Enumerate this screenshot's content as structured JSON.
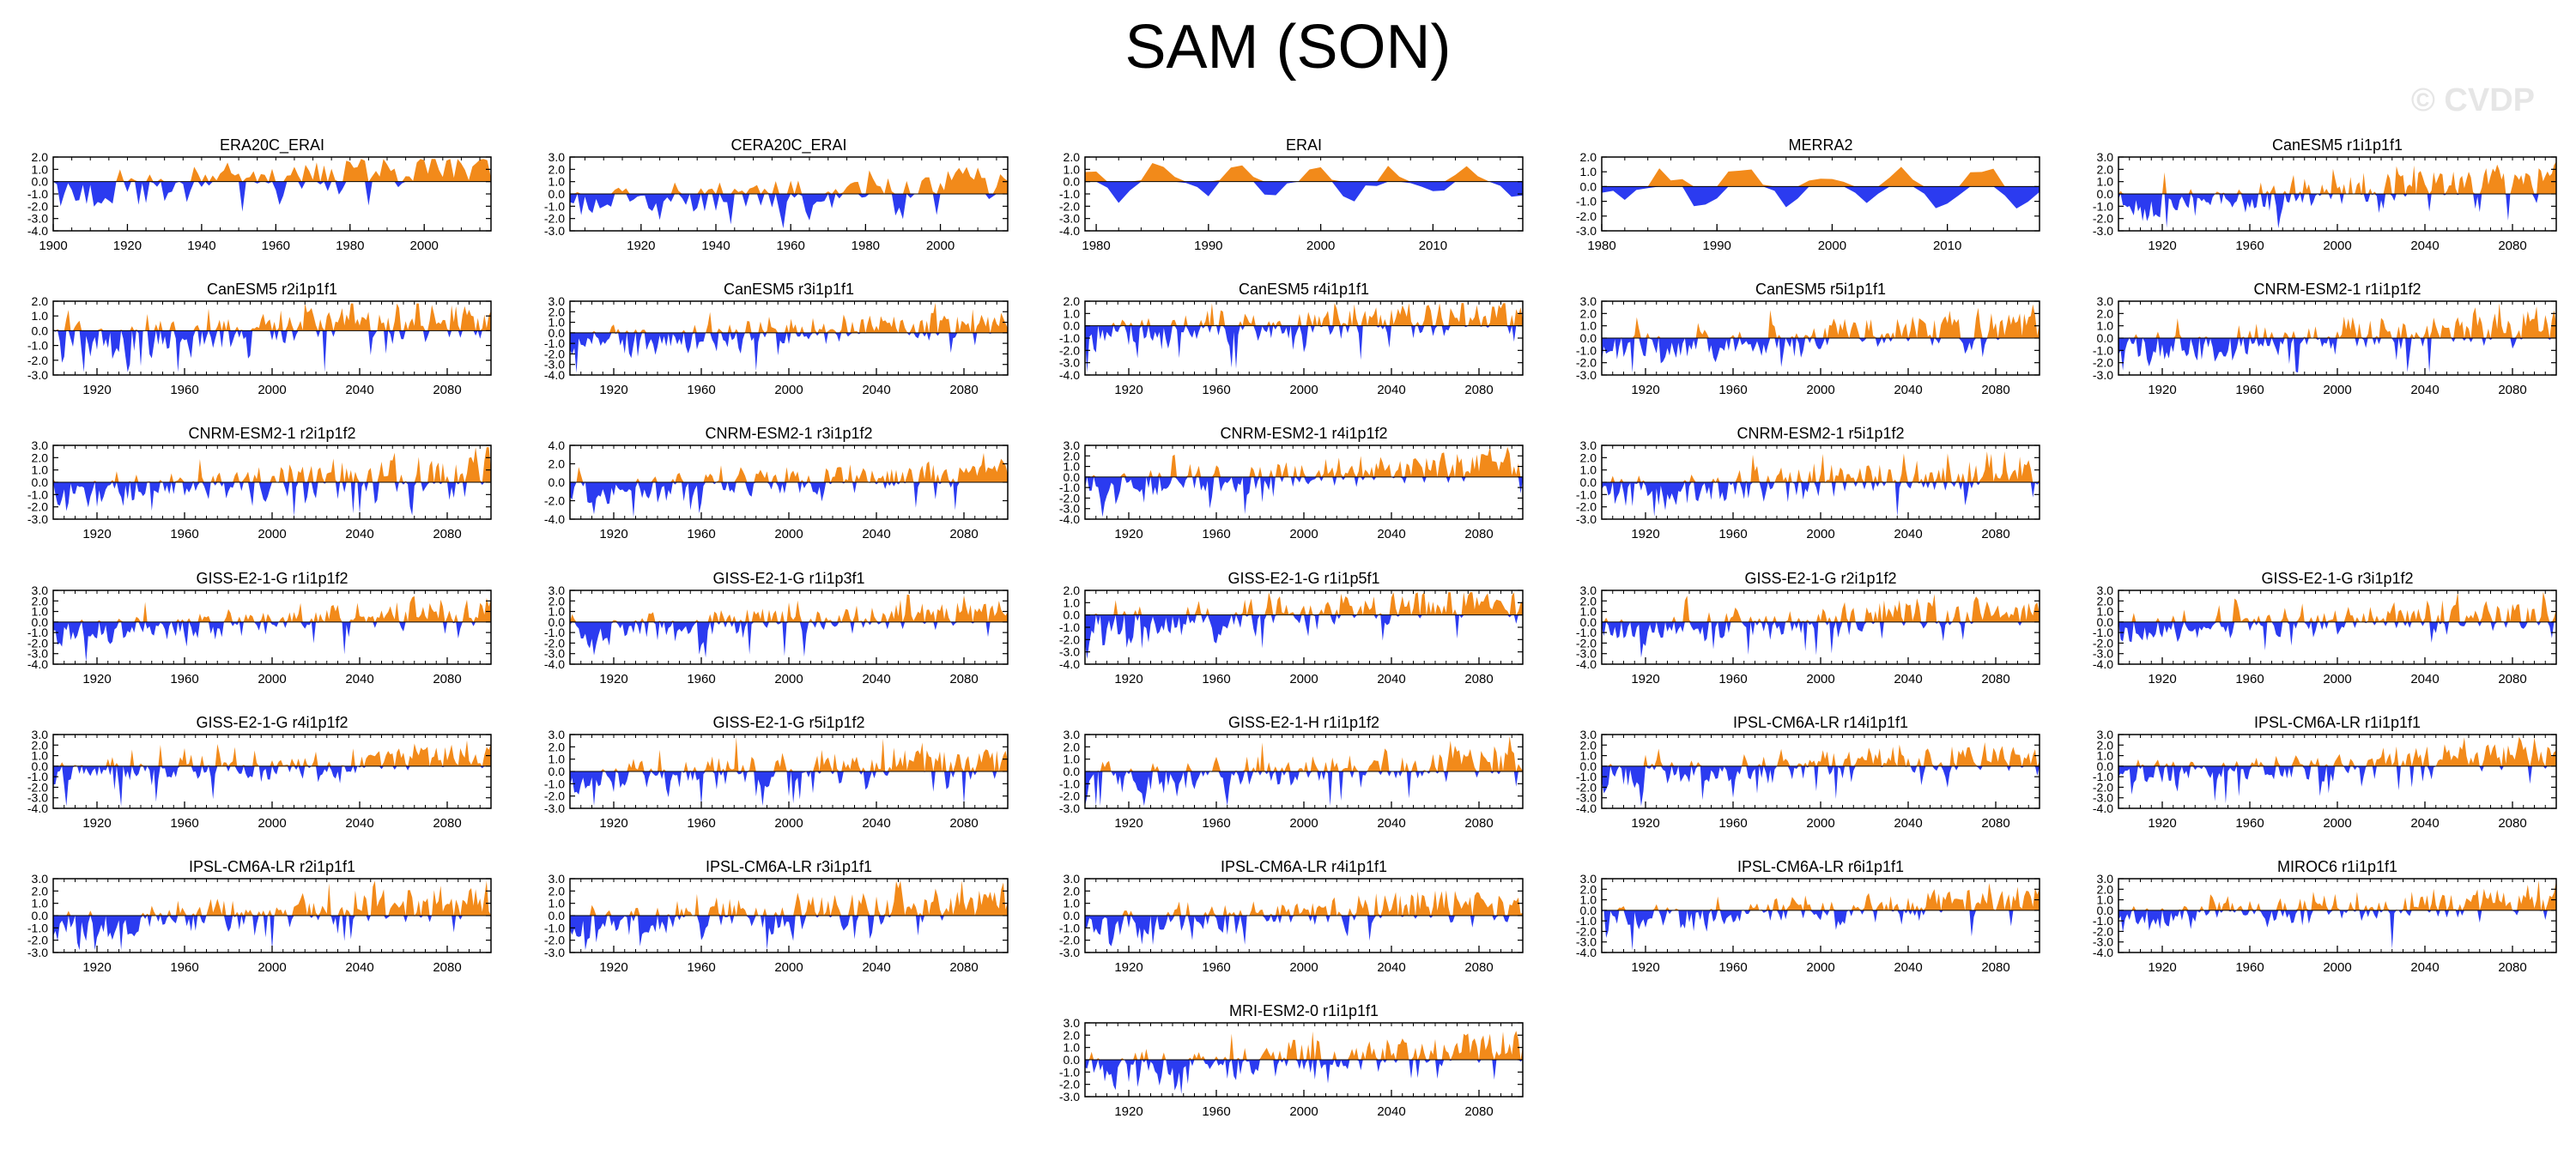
{
  "figure": {
    "title": "SAM (SON)",
    "watermark": "© CVDP"
  },
  "colors": {
    "positive": "#f28a1a",
    "negative": "#2b3bf0",
    "axis": "#000000"
  },
  "chart_data": [
    {
      "type": "area",
      "title": "ERA20C_ERAI",
      "x_range": [
        1900,
        2018
      ],
      "ylim": [
        -4,
        2
      ],
      "yticks": [
        "2.0",
        "1.0",
        "0.0",
        "-1.0",
        "-2.0",
        "-3.0",
        "-4.0"
      ],
      "xticks": [
        1900,
        1920,
        1940,
        1960,
        1980,
        2000
      ],
      "values_note": "yearly SON SAM index values"
    },
    {
      "type": "area",
      "title": "CERA20C_ERAI",
      "x_range": [
        1901,
        2018
      ],
      "ylim": [
        -3,
        3
      ],
      "yticks": [
        "3.0",
        "2.0",
        "1.0",
        "0.0",
        "-1.0",
        "-2.0",
        "-3.0"
      ],
      "xticks": [
        1920,
        1940,
        1960,
        1980,
        2000
      ]
    },
    {
      "type": "area",
      "title": "ERAI",
      "x_range": [
        1979,
        2018
      ],
      "ylim": [
        -4,
        2
      ],
      "yticks": [
        "2.0",
        "1.0",
        "0.0",
        "-1.0",
        "-2.0",
        "-3.0",
        "-4.0"
      ],
      "xticks": [
        1980,
        1990,
        2000,
        2010
      ]
    },
    {
      "type": "area",
      "title": "MERRA2",
      "x_range": [
        1980,
        2018
      ],
      "ylim": [
        -3,
        2
      ],
      "yticks": [
        "2.0",
        "1.0",
        "0.0",
        "-1.0",
        "-2.0",
        "-3.0"
      ],
      "xticks": [
        1980,
        1990,
        2000,
        2010
      ]
    },
    {
      "type": "area",
      "title": "CanESM5 r1i1p1f1",
      "x_range": [
        1900,
        2100
      ],
      "ylim": [
        -3,
        3
      ],
      "yticks": [
        "3.0",
        "2.0",
        "1.0",
        "0.0",
        "-1.0",
        "-2.0",
        "-3.0"
      ],
      "xticks": [
        1920,
        1960,
        2000,
        2040,
        2080
      ]
    },
    {
      "type": "area",
      "title": "CanESM5 r2i1p1f1",
      "x_range": [
        1900,
        2100
      ],
      "ylim": [
        -3,
        2
      ],
      "yticks": [
        "2.0",
        "1.0",
        "0.0",
        "-1.0",
        "-2.0",
        "-3.0"
      ],
      "xticks": [
        1920,
        1960,
        2000,
        2040,
        2080
      ]
    },
    {
      "type": "area",
      "title": "CanESM5 r3i1p1f1",
      "x_range": [
        1900,
        2100
      ],
      "ylim": [
        -4,
        3
      ],
      "yticks": [
        "3.0",
        "2.0",
        "1.0",
        "0.0",
        "-1.0",
        "-2.0",
        "-3.0",
        "-4.0"
      ],
      "xticks": [
        1920,
        1960,
        2000,
        2040,
        2080
      ]
    },
    {
      "type": "area",
      "title": "CanESM5 r4i1p1f1",
      "x_range": [
        1900,
        2100
      ],
      "ylim": [
        -4,
        2
      ],
      "yticks": [
        "2.0",
        "1.0",
        "0.0",
        "-1.0",
        "-2.0",
        "-3.0",
        "-4.0"
      ],
      "xticks": [
        1920,
        1960,
        2000,
        2040,
        2080
      ]
    },
    {
      "type": "area",
      "title": "CanESM5 r5i1p1f1",
      "x_range": [
        1900,
        2100
      ],
      "ylim": [
        -3,
        3
      ],
      "yticks": [
        "3.0",
        "2.0",
        "1.0",
        "0.0",
        "-1.0",
        "-2.0",
        "-3.0"
      ],
      "xticks": [
        1920,
        1960,
        2000,
        2040,
        2080
      ]
    },
    {
      "type": "area",
      "title": "CNRM-ESM2-1 r1i1p1f2",
      "x_range": [
        1900,
        2100
      ],
      "ylim": [
        -3,
        3
      ],
      "yticks": [
        "3.0",
        "2.0",
        "1.0",
        "0.0",
        "-1.0",
        "-2.0",
        "-3.0"
      ],
      "xticks": [
        1920,
        1960,
        2000,
        2040,
        2080
      ]
    },
    {
      "type": "area",
      "title": "CNRM-ESM2-1 r2i1p1f2",
      "x_range": [
        1900,
        2100
      ],
      "ylim": [
        -3,
        3
      ],
      "yticks": [
        "3.0",
        "2.0",
        "1.0",
        "0.0",
        "-1.0",
        "-2.0",
        "-3.0"
      ],
      "xticks": [
        1920,
        1960,
        2000,
        2040,
        2080
      ]
    },
    {
      "type": "area",
      "title": "CNRM-ESM2-1 r3i1p1f2",
      "x_range": [
        1900,
        2100
      ],
      "ylim": [
        -4,
        4
      ],
      "yticks": [
        "4.0",
        "2.0",
        "0.0",
        "-2.0",
        "-4.0"
      ],
      "xticks": [
        1920,
        1960,
        2000,
        2040,
        2080
      ]
    },
    {
      "type": "area",
      "title": "CNRM-ESM2-1 r4i1p1f2",
      "x_range": [
        1900,
        2100
      ],
      "ylim": [
        -4,
        3
      ],
      "yticks": [
        "3.0",
        "2.0",
        "1.0",
        "0.0",
        "-1.0",
        "-2.0",
        "-3.0",
        "-4.0"
      ],
      "xticks": [
        1920,
        1960,
        2000,
        2040,
        2080
      ]
    },
    {
      "type": "area",
      "title": "CNRM-ESM2-1 r5i1p1f2",
      "x_range": [
        1900,
        2100
      ],
      "ylim": [
        -3,
        3
      ],
      "yticks": [
        "3.0",
        "2.0",
        "1.0",
        "0.0",
        "-1.0",
        "-2.0",
        "-3.0"
      ],
      "xticks": [
        1920,
        1960,
        2000,
        2040,
        2080
      ]
    },
    null,
    {
      "type": "area",
      "title": "GISS-E2-1-G r1i1p1f2",
      "x_range": [
        1900,
        2100
      ],
      "ylim": [
        -4,
        3
      ],
      "yticks": [
        "3.0",
        "2.0",
        "1.0",
        "0.0",
        "-1.0",
        "-2.0",
        "-3.0",
        "-4.0"
      ],
      "xticks": [
        1920,
        1960,
        2000,
        2040,
        2080
      ]
    },
    {
      "type": "area",
      "title": "GISS-E2-1-G r1i1p3f1",
      "x_range": [
        1900,
        2100
      ],
      "ylim": [
        -4,
        3
      ],
      "yticks": [
        "3.0",
        "2.0",
        "1.0",
        "0.0",
        "-1.0",
        "-2.0",
        "-3.0",
        "-4.0"
      ],
      "xticks": [
        1920,
        1960,
        2000,
        2040,
        2080
      ]
    },
    {
      "type": "area",
      "title": "GISS-E2-1-G r1i1p5f1",
      "x_range": [
        1900,
        2100
      ],
      "ylim": [
        -4,
        2
      ],
      "yticks": [
        "2.0",
        "1.0",
        "0.0",
        "-1.0",
        "-2.0",
        "-3.0",
        "-4.0"
      ],
      "xticks": [
        1920,
        1960,
        2000,
        2040,
        2080
      ]
    },
    {
      "type": "area",
      "title": "GISS-E2-1-G r2i1p1f2",
      "x_range": [
        1900,
        2100
      ],
      "ylim": [
        -4,
        3
      ],
      "yticks": [
        "3.0",
        "2.0",
        "1.0",
        "0.0",
        "-1.0",
        "-2.0",
        "-3.0",
        "-4.0"
      ],
      "xticks": [
        1920,
        1960,
        2000,
        2040,
        2080
      ]
    },
    {
      "type": "area",
      "title": "GISS-E2-1-G r3i1p1f2",
      "x_range": [
        1900,
        2100
      ],
      "ylim": [
        -4,
        3
      ],
      "yticks": [
        "3.0",
        "2.0",
        "1.0",
        "0.0",
        "-1.0",
        "-2.0",
        "-3.0",
        "-4.0"
      ],
      "xticks": [
        1920,
        1960,
        2000,
        2040,
        2080
      ]
    },
    {
      "type": "area",
      "title": "GISS-E2-1-G r4i1p1f2",
      "x_range": [
        1900,
        2100
      ],
      "ylim": [
        -4,
        3
      ],
      "yticks": [
        "3.0",
        "2.0",
        "1.0",
        "0.0",
        "-1.0",
        "-2.0",
        "-3.0",
        "-4.0"
      ],
      "xticks": [
        1920,
        1960,
        2000,
        2040,
        2080
      ]
    },
    {
      "type": "area",
      "title": "GISS-E2-1-G r5i1p1f2",
      "x_range": [
        1900,
        2100
      ],
      "ylim": [
        -3,
        3
      ],
      "yticks": [
        "3.0",
        "2.0",
        "1.0",
        "0.0",
        "-1.0",
        "-2.0",
        "-3.0"
      ],
      "xticks": [
        1920,
        1960,
        2000,
        2040,
        2080
      ]
    },
    {
      "type": "area",
      "title": "GISS-E2-1-H r1i1p1f2",
      "x_range": [
        1900,
        2100
      ],
      "ylim": [
        -3,
        3
      ],
      "yticks": [
        "3.0",
        "2.0",
        "1.0",
        "0.0",
        "-1.0",
        "-2.0",
        "-3.0"
      ],
      "xticks": [
        1920,
        1960,
        2000,
        2040,
        2080
      ]
    },
    {
      "type": "area",
      "title": "IPSL-CM6A-LR r14i1p1f1",
      "x_range": [
        1900,
        2100
      ],
      "ylim": [
        -4,
        3
      ],
      "yticks": [
        "3.0",
        "2.0",
        "1.0",
        "0.0",
        "-1.0",
        "-2.0",
        "-3.0",
        "-4.0"
      ],
      "xticks": [
        1920,
        1960,
        2000,
        2040,
        2080
      ]
    },
    {
      "type": "area",
      "title": "IPSL-CM6A-LR r1i1p1f1",
      "x_range": [
        1900,
        2100
      ],
      "ylim": [
        -4,
        3
      ],
      "yticks": [
        "3.0",
        "2.0",
        "1.0",
        "0.0",
        "-1.0",
        "-2.0",
        "-3.0",
        "-4.0"
      ],
      "xticks": [
        1920,
        1960,
        2000,
        2040,
        2080
      ]
    },
    {
      "type": "area",
      "title": "IPSL-CM6A-LR r2i1p1f1",
      "x_range": [
        1900,
        2100
      ],
      "ylim": [
        -3,
        3
      ],
      "yticks": [
        "3.0",
        "2.0",
        "1.0",
        "0.0",
        "-1.0",
        "-2.0",
        "-3.0"
      ],
      "xticks": [
        1920,
        1960,
        2000,
        2040,
        2080
      ]
    },
    {
      "type": "area",
      "title": "IPSL-CM6A-LR r3i1p1f1",
      "x_range": [
        1900,
        2100
      ],
      "ylim": [
        -3,
        3
      ],
      "yticks": [
        "3.0",
        "2.0",
        "1.0",
        "0.0",
        "-1.0",
        "-2.0",
        "-3.0"
      ],
      "xticks": [
        1920,
        1960,
        2000,
        2040,
        2080
      ]
    },
    {
      "type": "area",
      "title": "IPSL-CM6A-LR r4i1p1f1",
      "x_range": [
        1900,
        2100
      ],
      "ylim": [
        -3,
        3
      ],
      "yticks": [
        "3.0",
        "2.0",
        "1.0",
        "0.0",
        "-1.0",
        "-2.0",
        "-3.0"
      ],
      "xticks": [
        1920,
        1960,
        2000,
        2040,
        2080
      ]
    },
    {
      "type": "area",
      "title": "IPSL-CM6A-LR r6i1p1f1",
      "x_range": [
        1900,
        2100
      ],
      "ylim": [
        -4,
        3
      ],
      "yticks": [
        "3.0",
        "2.0",
        "1.0",
        "0.0",
        "-1.0",
        "-2.0",
        "-3.0",
        "-4.0"
      ],
      "xticks": [
        1920,
        1960,
        2000,
        2040,
        2080
      ]
    },
    {
      "type": "area",
      "title": "MIROC6 r1i1p1f1",
      "x_range": [
        1900,
        2100
      ],
      "ylim": [
        -4,
        3
      ],
      "yticks": [
        "3.0",
        "2.0",
        "1.0",
        "0.0",
        "-1.0",
        "-2.0",
        "-3.0",
        "-4.0"
      ],
      "xticks": [
        1920,
        1960,
        2000,
        2040,
        2080
      ]
    },
    null,
    null,
    {
      "type": "area",
      "title": "MRI-ESM2-0 r1i1p1f1",
      "x_range": [
        1900,
        2100
      ],
      "ylim": [
        -3,
        3
      ],
      "yticks": [
        "3.0",
        "2.0",
        "1.0",
        "0.0",
        "-1.0",
        "-2.0",
        "-3.0"
      ],
      "xticks": [
        1920,
        1960,
        2000,
        2040,
        2080
      ]
    },
    null,
    null
  ]
}
